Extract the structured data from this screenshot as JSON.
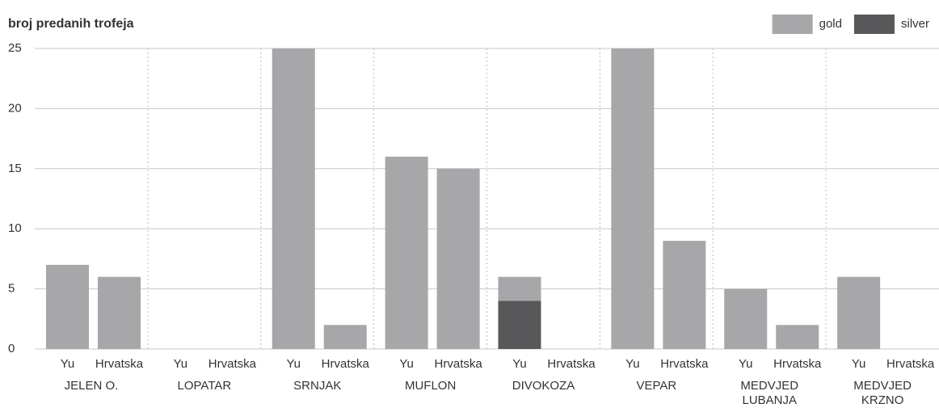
{
  "chart_data": {
    "type": "grouped-stacked-bar",
    "title": "broj predanih trofeja",
    "categories": [
      "JELEN O.",
      "LOPATAR",
      "SRNJAK",
      "MUFLON",
      "DIVOKOZA",
      "VEPAR",
      "MEDVJED\nLUBANJA",
      "MEDVJED\nKRZNO"
    ],
    "subcategories": [
      "Yu",
      "Hrvatska"
    ],
    "series": [
      {
        "name": "gold",
        "color": "#a7a7aa",
        "values": [
          [
            7,
            6
          ],
          [
            0,
            0
          ],
          [
            25,
            2
          ],
          [
            16,
            15
          ],
          [
            2,
            0
          ],
          [
            25,
            9
          ],
          [
            5,
            2
          ],
          [
            6,
            0
          ]
        ]
      },
      {
        "name": "silver",
        "color": "#58585a",
        "values": [
          [
            0,
            0
          ],
          [
            0,
            0
          ],
          [
            0,
            0
          ],
          [
            0,
            0
          ],
          [
            4,
            0
          ],
          [
            0,
            0
          ],
          [
            0,
            0
          ],
          [
            0,
            0
          ]
        ]
      }
    ],
    "stack_order": "bottom-up-reversed",
    "ylim": [
      0,
      25
    ],
    "yticks": [
      0,
      5,
      10,
      15,
      20,
      25
    ],
    "grid": true,
    "legend": "top-right"
  }
}
